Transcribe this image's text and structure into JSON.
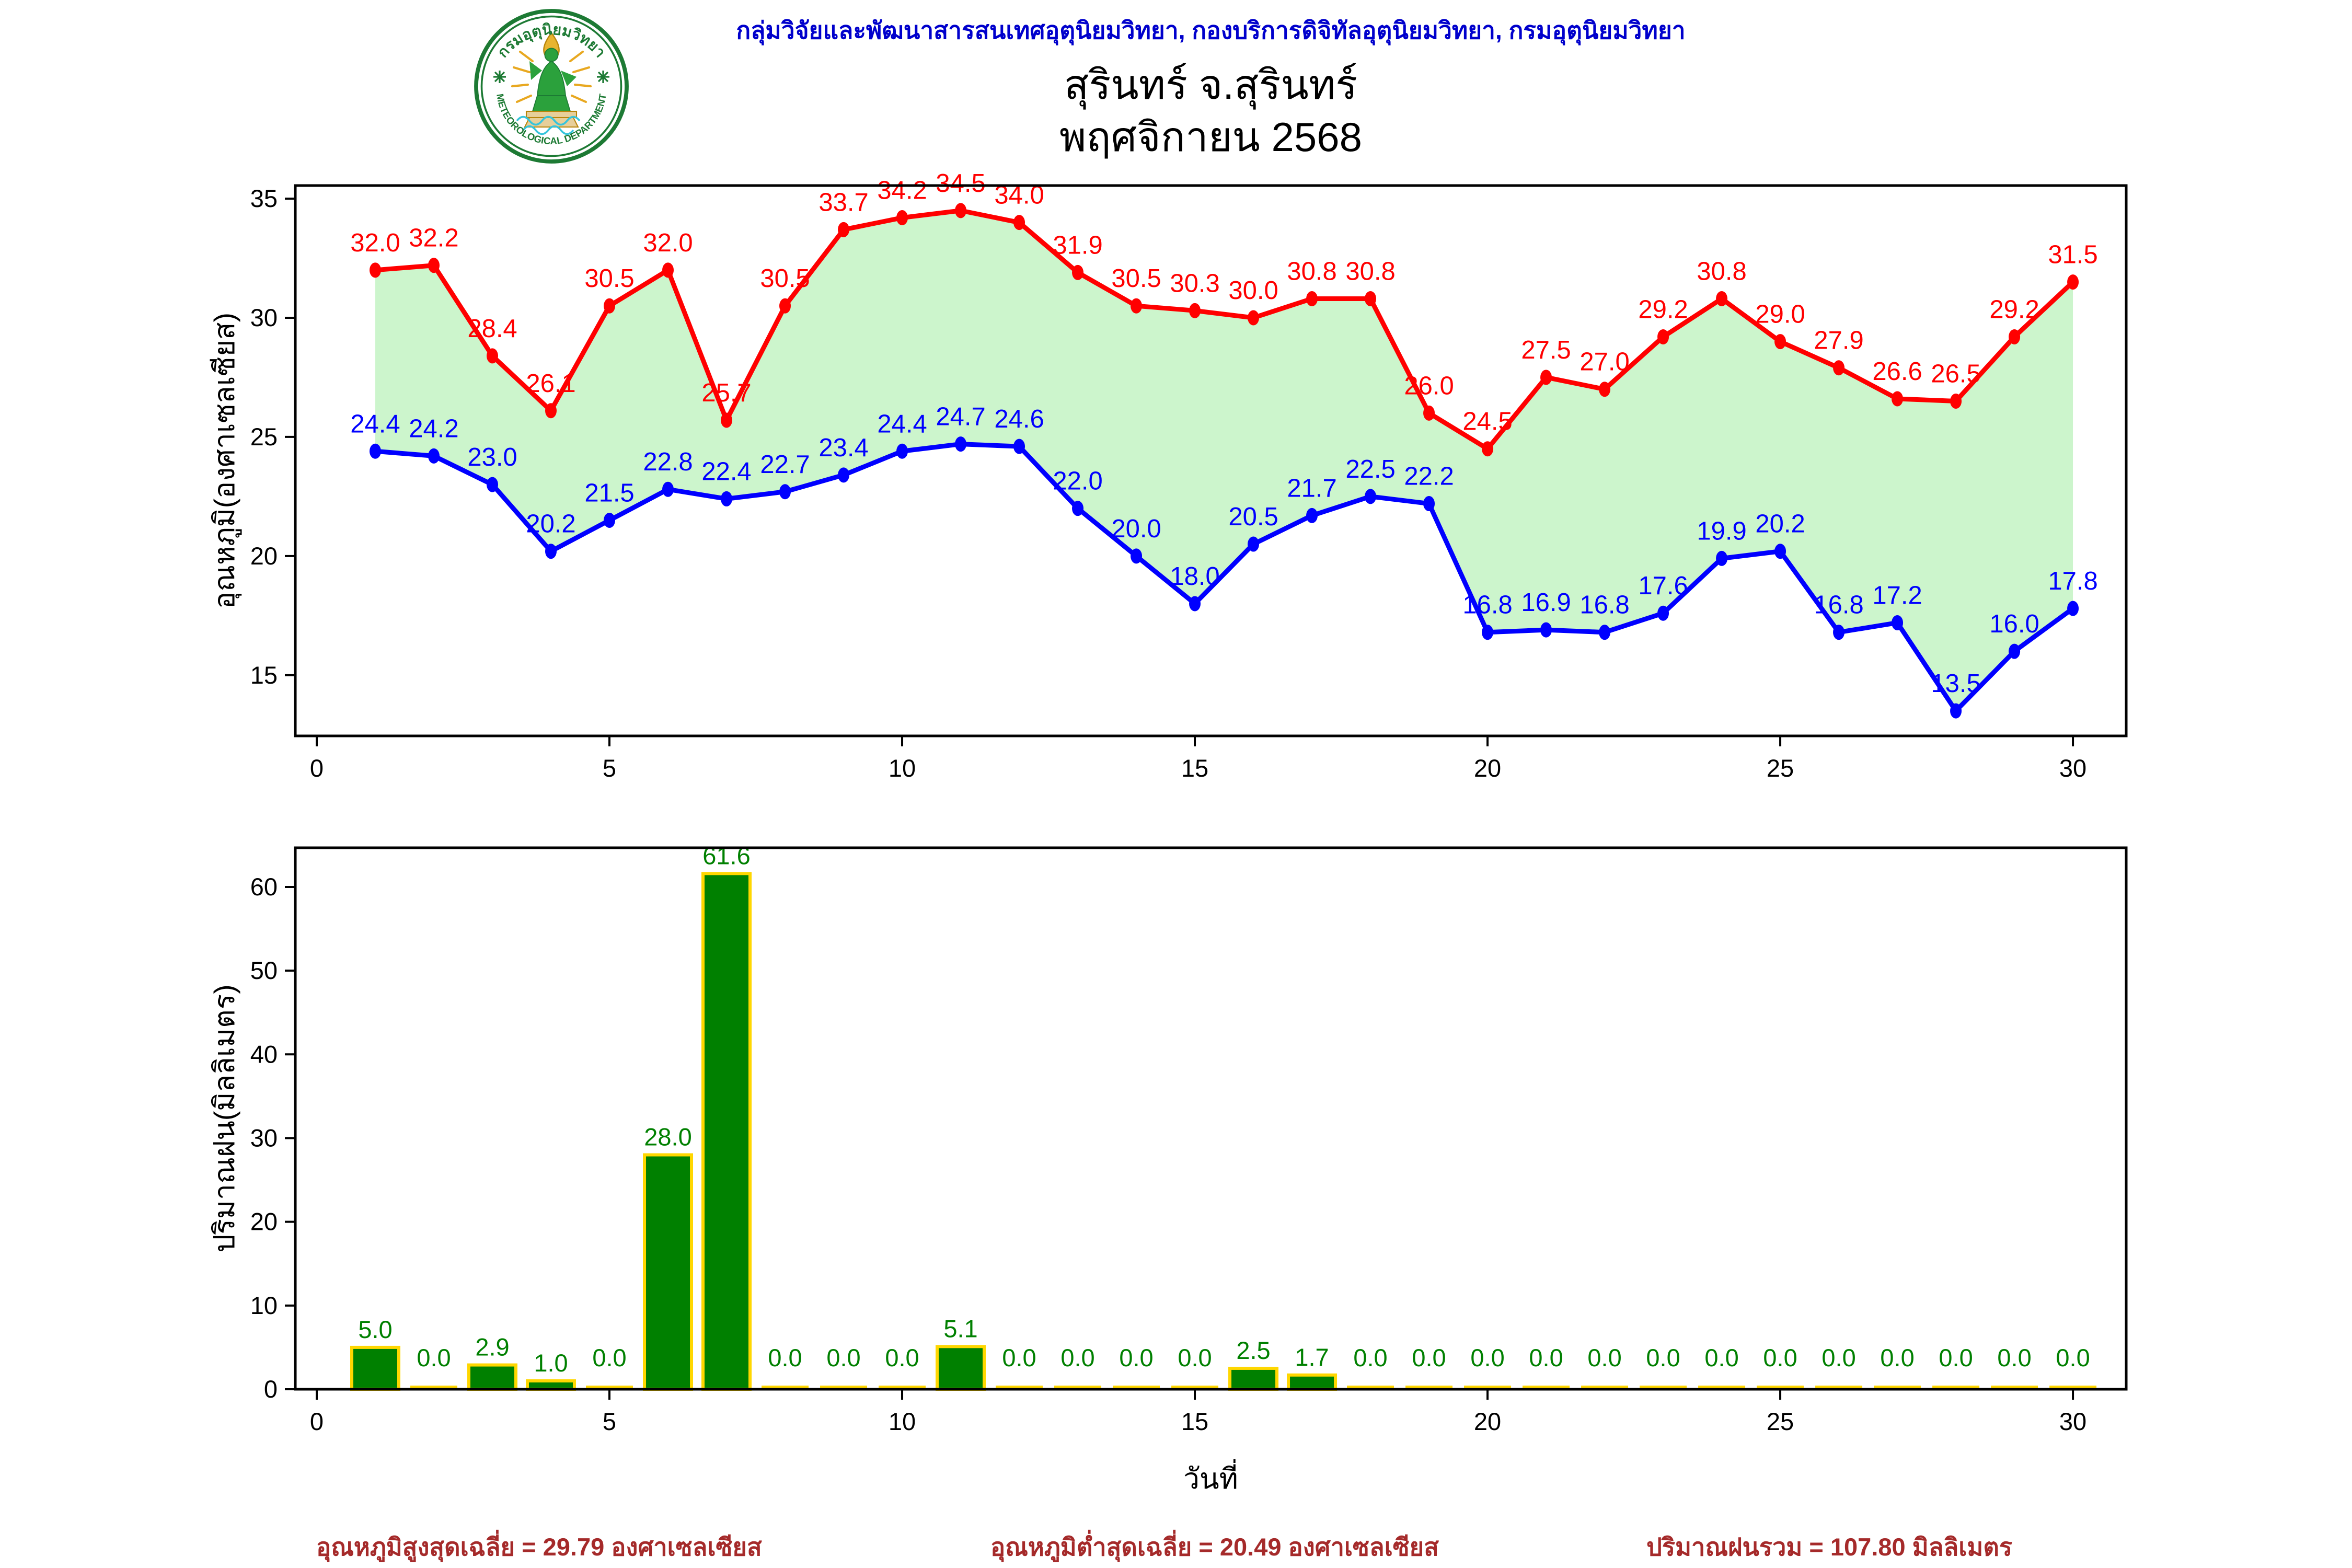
{
  "header": {
    "agency_line": "กลุ่มวิจัยและพัฒนาสารสนเทศอุตุนิยมวิทยา, กองบริการดิจิทัลอุตุนิยมวิทยา, กรมอุตุนิยมวิทยา",
    "title": "สุรินทร์ จ.สุรินทร์",
    "subtitle": "พฤศจิกายน 2568"
  },
  "logo": {
    "ring_top": "กรมอุตุนิยมวิทยา",
    "ring_bottom": "METEOROLOGICAL DEPARTMENT",
    "ring_color": "#1d7a34"
  },
  "colors": {
    "header_blue": "#0000cc",
    "max_temp_red": "#ff0000",
    "min_temp_blue": "#0000ff",
    "fill_green": "#ccf5cc",
    "bar_green": "#008000",
    "bar_edge_gold": "#ffd700",
    "summary_red": "#a52a2a",
    "axis_black": "#000000"
  },
  "chart_data": [
    {
      "type": "line",
      "title": "",
      "x": [
        1,
        2,
        3,
        4,
        5,
        6,
        7,
        8,
        9,
        10,
        11,
        12,
        13,
        14,
        15,
        16,
        17,
        18,
        19,
        20,
        21,
        22,
        23,
        24,
        25,
        26,
        27,
        28,
        29,
        30
      ],
      "series": [
        {
          "name": "max_temperature",
          "color": "#ff0000",
          "values": [
            32.0,
            32.2,
            28.4,
            26.1,
            30.5,
            32.0,
            25.7,
            30.5,
            33.7,
            34.2,
            34.5,
            34.0,
            31.9,
            30.5,
            30.3,
            30.0,
            30.8,
            30.8,
            26.0,
            24.5,
            27.5,
            27.0,
            29.2,
            30.8,
            29.0,
            27.9,
            26.6,
            26.5,
            29.2,
            31.5
          ]
        },
        {
          "name": "min_temperature",
          "color": "#0000ff",
          "values": [
            24.4,
            24.2,
            23.0,
            20.2,
            21.5,
            22.8,
            22.4,
            22.7,
            23.4,
            24.4,
            24.7,
            24.6,
            22.0,
            20.0,
            18.0,
            20.5,
            21.7,
            22.5,
            22.2,
            16.8,
            16.9,
            16.8,
            17.6,
            19.9,
            20.2,
            16.8,
            17.2,
            13.5,
            16.0,
            17.8
          ]
        }
      ],
      "fill_between_color": "#ccf5cc",
      "xlabel": "",
      "ylabel": "อุณหภูมิ(องศาเซลเซียส)",
      "yticks": [
        15,
        20,
        25,
        30,
        35
      ],
      "xticks": [
        0,
        5,
        10,
        15,
        20,
        25,
        30
      ],
      "ylim": [
        12.45,
        35.55
      ],
      "xlim": [
        -0.366,
        30.91
      ],
      "grid": false,
      "legend": "none"
    },
    {
      "type": "bar",
      "title": "",
      "x": [
        1,
        2,
        3,
        4,
        5,
        6,
        7,
        8,
        9,
        10,
        11,
        12,
        13,
        14,
        15,
        16,
        17,
        18,
        19,
        20,
        21,
        22,
        23,
        24,
        25,
        26,
        27,
        28,
        29,
        30
      ],
      "values": [
        5.0,
        0.0,
        2.9,
        1.0,
        0.0,
        28.0,
        61.6,
        0.0,
        0.0,
        0.0,
        5.1,
        0.0,
        0.0,
        0.0,
        0.0,
        2.5,
        1.7,
        0.0,
        0.0,
        0.0,
        0.0,
        0.0,
        0.0,
        0.0,
        0.0,
        0.0,
        0.0,
        0.0,
        0.0,
        0.0
      ],
      "bar_color": "#008000",
      "bar_edge_color": "#ffd700",
      "label_color": "#008000",
      "xlabel": "วันที่",
      "ylabel": "ปริมาณฝน(มิลลิเมตร)",
      "yticks": [
        0,
        10,
        20,
        30,
        40,
        50,
        60
      ],
      "xticks": [
        0,
        5,
        10,
        15,
        20,
        25,
        30
      ],
      "ylim": [
        0,
        64.68
      ],
      "xlim": [
        -0.366,
        30.91
      ],
      "grid": false,
      "legend": "none"
    }
  ],
  "summary": {
    "max_avg": "อุณหภูมิสูงสุดเฉลี่ย = 29.79 องศาเซลเซียส",
    "min_avg": "อุณหภูมิต่ำสุดเฉลี่ย = 20.49 องศาเซลเซียส",
    "rain_total": "ปริมาณฝนรวม = 107.80 มิลลิเมตร"
  }
}
